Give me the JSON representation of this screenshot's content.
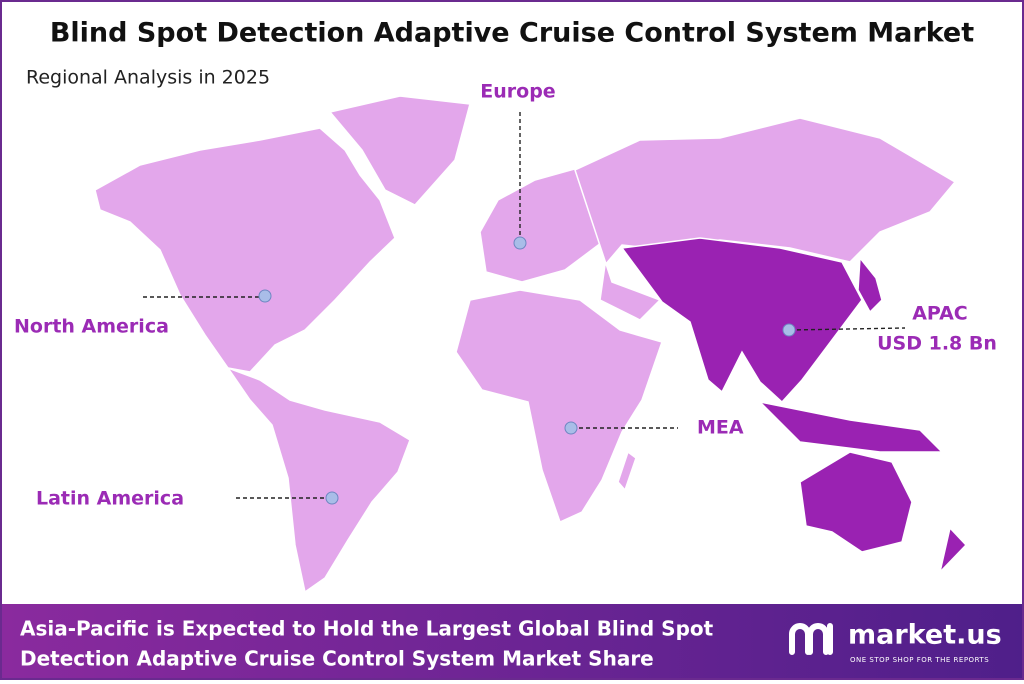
{
  "header": {
    "title": "Blind Spot Detection Adaptive Cruise Control System Market",
    "subtitle": "Regional Analysis in 2025"
  },
  "regions": [
    {
      "name": "Europe"
    },
    {
      "name": "North America"
    },
    {
      "name": "APAC",
      "value": "USD 1.8 Bn"
    },
    {
      "name": "MEA"
    },
    {
      "name": "Latin America"
    }
  ],
  "footer": {
    "lines": [
      "Asia-Pacific is Expected to Hold the Largest Global Blind Spot",
      "Detection Adaptive Cruise Control System Market Share"
    ],
    "brand": "market.us",
    "tagline": "ONE STOP SHOP FOR THE REPORTS"
  }
}
